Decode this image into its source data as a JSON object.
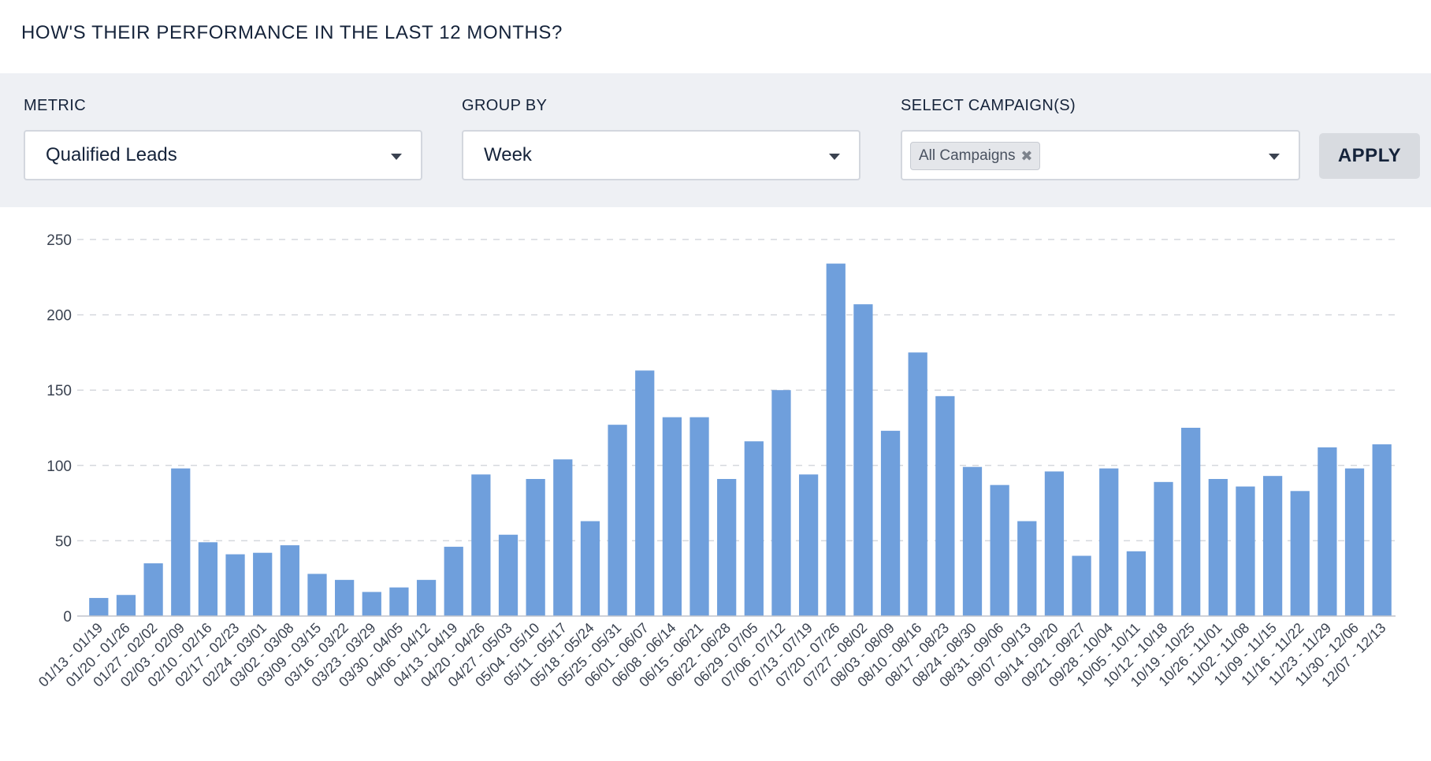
{
  "header": {
    "title": "HOW'S THEIR PERFORMANCE IN THE LAST 12 MONTHS?"
  },
  "filters": {
    "metric": {
      "label": "METRIC",
      "value": "Qualified Leads"
    },
    "group_by": {
      "label": "GROUP BY",
      "value": "Week"
    },
    "campaigns": {
      "label": "SELECT CAMPAIGN(S)",
      "tag": "All Campaigns"
    },
    "apply_label": "APPLY"
  },
  "colors": {
    "bar": "#6f9fdc",
    "grid": "#d5d8dd",
    "filter_bg": "#eef0f4"
  },
  "chart_data": {
    "type": "bar",
    "title": "",
    "xlabel": "",
    "ylabel": "",
    "ylim": [
      0,
      250
    ],
    "yticks": [
      0,
      50,
      100,
      150,
      200,
      250
    ],
    "grid": true,
    "categories": [
      "01/13 - 01/19",
      "01/20 - 01/26",
      "01/27 - 02/02",
      "02/03 - 02/09",
      "02/10 - 02/16",
      "02/17 - 02/23",
      "02/24 - 03/01",
      "03/02 - 03/08",
      "03/09 - 03/15",
      "03/16 - 03/22",
      "03/23 - 03/29",
      "03/30 - 04/05",
      "04/06 - 04/12",
      "04/13 - 04/19",
      "04/20 - 04/26",
      "04/27 - 05/03",
      "05/04 - 05/10",
      "05/11 - 05/17",
      "05/18 - 05/24",
      "05/25 - 05/31",
      "06/01 - 06/07",
      "06/08 - 06/14",
      "06/15 - 06/21",
      "06/22 - 06/28",
      "06/29 - 07/05",
      "07/06 - 07/12",
      "07/13 - 07/19",
      "07/20 - 07/26",
      "07/27 - 08/02",
      "08/03 - 08/09",
      "08/10 - 08/16",
      "08/17 - 08/23",
      "08/24 - 08/30",
      "08/31 - 09/06",
      "09/07 - 09/13",
      "09/14 - 09/20",
      "09/21 - 09/27",
      "09/28 - 10/04",
      "10/05 - 10/11",
      "10/12 - 10/18",
      "10/19 - 10/25",
      "10/26 - 11/01",
      "11/02 - 11/08",
      "11/09 - 11/15",
      "11/16 - 11/22",
      "11/23 - 11/29",
      "11/30 - 12/06",
      "12/07 - 12/13"
    ],
    "values": [
      12,
      14,
      35,
      98,
      49,
      41,
      42,
      47,
      28,
      24,
      16,
      19,
      24,
      46,
      94,
      54,
      91,
      104,
      63,
      127,
      163,
      132,
      132,
      91,
      116,
      150,
      94,
      234,
      207,
      123,
      175,
      146,
      99,
      87,
      63,
      96,
      40,
      98,
      43,
      89,
      125,
      91,
      86,
      93,
      83,
      112,
      98,
      114
    ]
  }
}
